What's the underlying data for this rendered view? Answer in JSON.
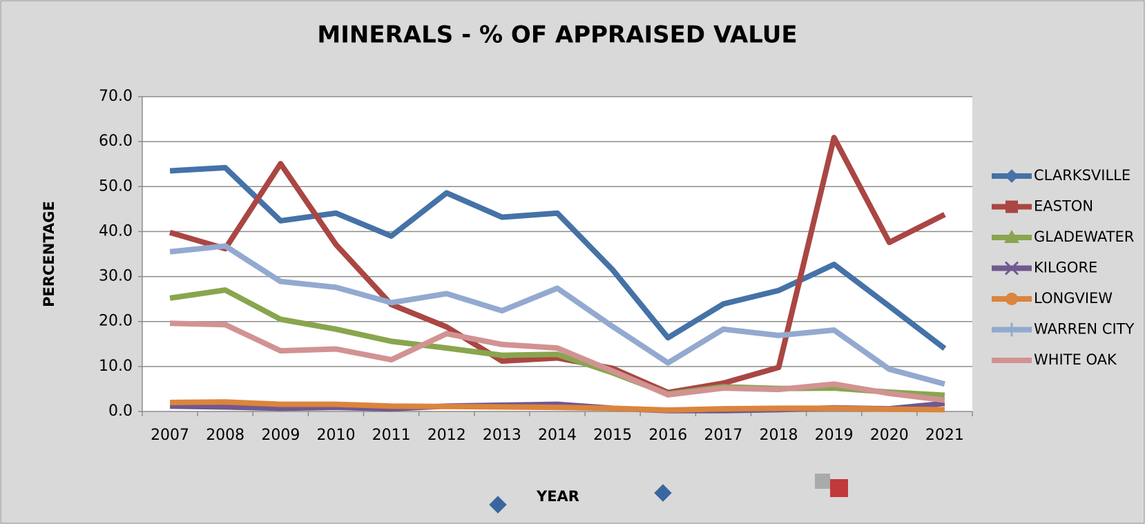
{
  "chart_data": {
    "type": "line",
    "title": "MINERALS - % OF APPRAISED VALUE",
    "y_label": "PERCENTAGE",
    "x_label": "YEAR",
    "categories": [
      "2007",
      "2008",
      "2009",
      "2010",
      "2011",
      "2012",
      "2013",
      "2014",
      "2015",
      "2016",
      "2017",
      "2018",
      "2019",
      "2020",
      "2021"
    ],
    "series": [
      {
        "name": "CLARKSVILLE",
        "color": "#4572a7",
        "values": [
          53.5,
          54.2,
          42.4,
          44.1,
          39.0,
          48.6,
          43.2,
          44.1,
          31.5,
          16.4,
          23.9,
          26.9,
          32.7,
          23.4,
          14.0
        ]
      },
      {
        "name": "EASTON",
        "color": "#aa4643",
        "values": [
          39.8,
          36.2,
          55.1,
          37.1,
          23.8,
          18.8,
          11.2,
          11.9,
          9.6,
          4.2,
          6.3,
          9.8,
          60.9,
          37.6,
          43.8
        ]
      },
      {
        "name": "GLADEWATER",
        "color": "#89a54e",
        "values": [
          25.2,
          27.0,
          20.5,
          18.3,
          15.6,
          14.1,
          12.5,
          12.7,
          8.6,
          3.9,
          5.5,
          5.1,
          5.2,
          4.3,
          3.6
        ]
      },
      {
        "name": "KILGORE",
        "color": "#71588f",
        "values": [
          1.2,
          1.0,
          0.7,
          0.9,
          0.6,
          1.2,
          1.4,
          1.6,
          0.7,
          0.2,
          0.2,
          0.4,
          0.8,
          0.6,
          1.8
        ]
      },
      {
        "name": "LONGVIEW",
        "color": "#db843d",
        "values": [
          2.0,
          2.1,
          1.6,
          1.6,
          1.2,
          1.1,
          1.0,
          0.9,
          0.7,
          0.3,
          0.6,
          0.7,
          0.7,
          0.5,
          0.4
        ]
      },
      {
        "name": "WARREN CITY",
        "color": "#93a9cf",
        "values": [
          35.5,
          36.8,
          28.9,
          27.6,
          24.2,
          26.2,
          22.4,
          27.4,
          18.9,
          10.8,
          18.3,
          16.9,
          18.1,
          9.4,
          6.1
        ]
      },
      {
        "name": "WHITE OAK",
        "color": "#d19392",
        "values": [
          19.6,
          19.3,
          13.5,
          13.9,
          11.5,
          17.3,
          14.9,
          14.1,
          9.0,
          3.7,
          5.2,
          4.9,
          6.1,
          4.0,
          2.5
        ]
      }
    ],
    "ylim": [
      0,
      70
    ],
    "yticks": [
      {
        "value": 0,
        "label": "0.0"
      },
      {
        "value": 10,
        "label": "10.0"
      },
      {
        "value": 20,
        "label": "20.0"
      },
      {
        "value": 30,
        "label": "30.0"
      },
      {
        "value": 40,
        "label": "40.0"
      },
      {
        "value": 50,
        "label": "50.0"
      },
      {
        "value": 60,
        "label": "60.0"
      },
      {
        "value": 70,
        "label": "70.0"
      }
    ],
    "grid": true,
    "legend": "right"
  }
}
